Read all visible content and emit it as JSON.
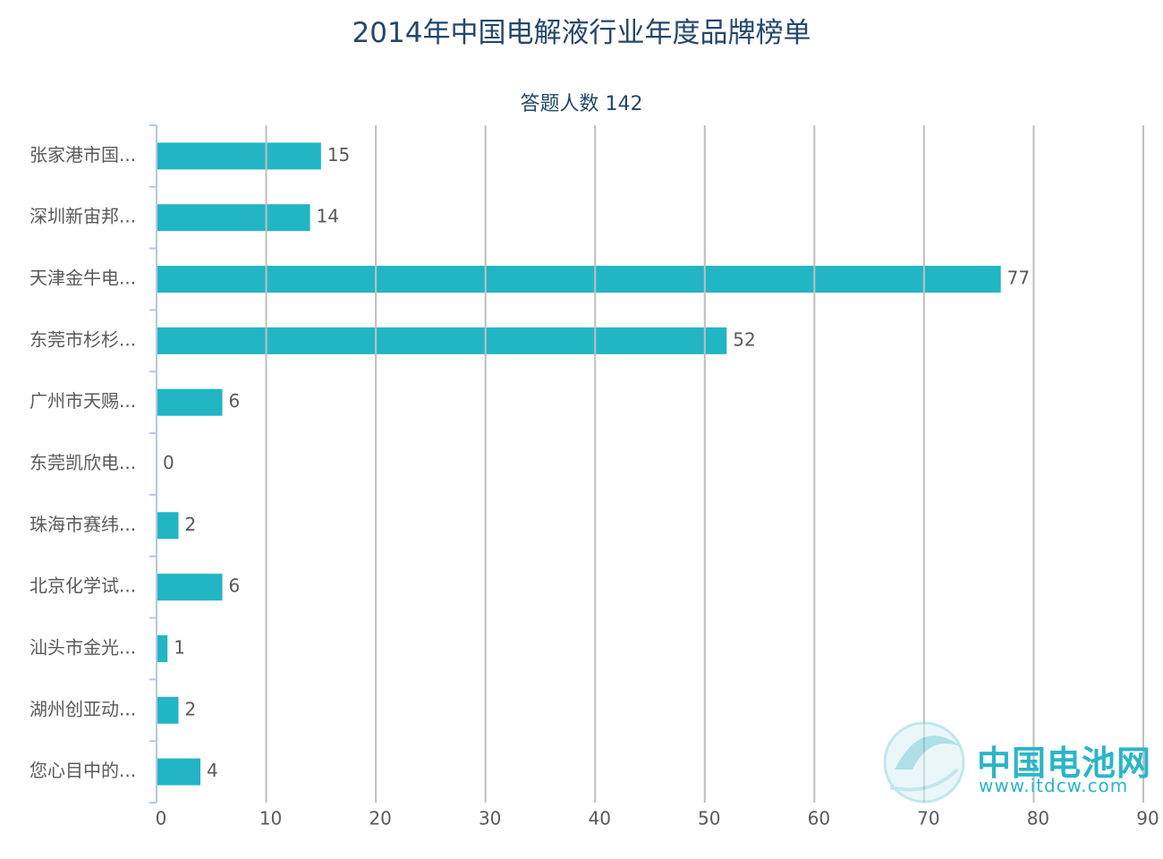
{
  "chart_data": {
    "type": "bar",
    "orientation": "horizontal",
    "title": "2014年中国电解液行业年度品牌榜单",
    "subtitle": "答题人数 142",
    "categories": [
      "张家港市国...",
      "深圳新宙邦...",
      "天津金牛电...",
      "东莞市杉杉...",
      "广州市天赐...",
      "东莞凯欣电...",
      "珠海市赛纬...",
      "北京化学试...",
      "汕头市金光...",
      "湖州创亚动...",
      "您心目中的..."
    ],
    "values": [
      15,
      14,
      77,
      52,
      6,
      0,
      2,
      6,
      1,
      2,
      4
    ],
    "color": "#22b5c4",
    "xlim": [
      0,
      90
    ],
    "xticks": [
      0,
      10,
      20,
      30,
      40,
      50,
      60,
      70,
      80,
      90
    ],
    "grid": true
  },
  "watermark": {
    "title": "中国电池网",
    "url": "www.itdcw.com"
  }
}
